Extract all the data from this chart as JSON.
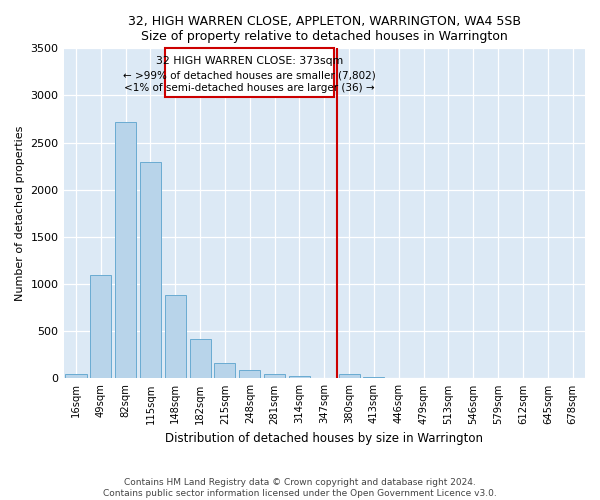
{
  "title": "32, HIGH WARREN CLOSE, APPLETON, WARRINGTON, WA4 5SB",
  "subtitle": "Size of property relative to detached houses in Warrington",
  "xlabel": "Distribution of detached houses by size in Warrington",
  "ylabel": "Number of detached properties",
  "bins": [
    "16sqm",
    "49sqm",
    "82sqm",
    "115sqm",
    "148sqm",
    "182sqm",
    "215sqm",
    "248sqm",
    "281sqm",
    "314sqm",
    "347sqm",
    "380sqm",
    "413sqm",
    "446sqm",
    "479sqm",
    "513sqm",
    "546sqm",
    "579sqm",
    "612sqm",
    "645sqm",
    "678sqm"
  ],
  "values": [
    50,
    1100,
    2720,
    2290,
    880,
    415,
    160,
    90,
    50,
    22,
    8,
    50,
    18,
    8,
    5,
    3,
    3,
    3,
    3,
    3,
    3
  ],
  "bar_color": "#b8d4ea",
  "bar_edge_color": "#6aabd2",
  "bg_color": "#dce9f5",
  "grid_color": "#c0d4e8",
  "vline_label": "32 HIGH WARREN CLOSE: 373sqm",
  "annotation_line1": "← >99% of detached houses are smaller (7,802)",
  "annotation_line2": "<1% of semi-detached houses are larger (36) →",
  "box_color": "#cc0000",
  "ylim": [
    0,
    3500
  ],
  "yticks": [
    0,
    500,
    1000,
    1500,
    2000,
    2500,
    3000,
    3500
  ],
  "footer1": "Contains HM Land Registry data © Crown copyright and database right 2024.",
  "footer2": "Contains public sector information licensed under the Open Government Licence v3.0."
}
